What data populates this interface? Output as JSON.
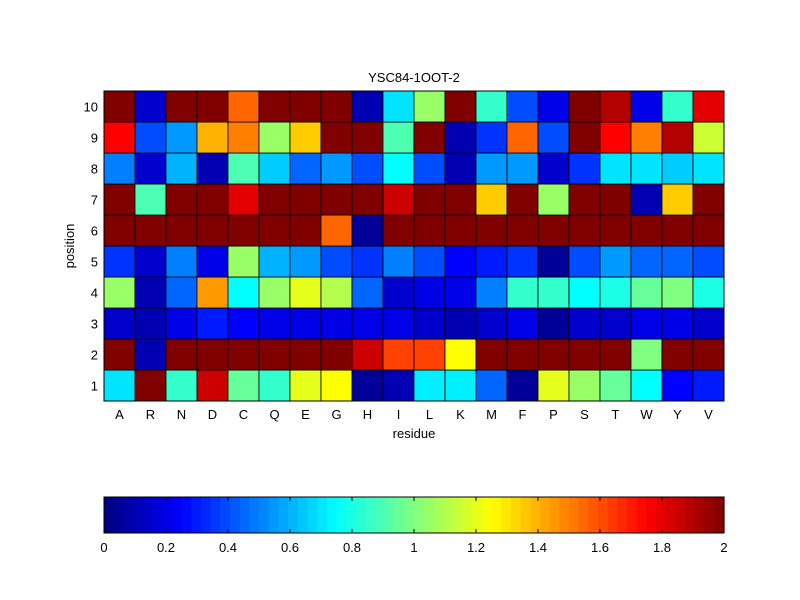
{
  "chart_data": {
    "type": "heatmap",
    "title": "YSC84-1OOT-2",
    "xlabel": "residue",
    "ylabel": "position",
    "x_categories": [
      "A",
      "R",
      "N",
      "D",
      "C",
      "Q",
      "E",
      "G",
      "H",
      "I",
      "L",
      "K",
      "M",
      "F",
      "P",
      "S",
      "T",
      "W",
      "Y",
      "V"
    ],
    "y_categories": [
      "1",
      "2",
      "3",
      "4",
      "5",
      "6",
      "7",
      "8",
      "9",
      "10"
    ],
    "colormap": "jet",
    "clim": [
      0,
      2
    ],
    "colorbar": {
      "placement": "bottom",
      "ticks": [
        0,
        0.2,
        0.4,
        0.6,
        0.8,
        1,
        1.2,
        1.4,
        1.6,
        1.8,
        2
      ],
      "tick_labels": [
        "0",
        "0.2",
        "0.4",
        "0.6",
        "0.8",
        "1",
        "1.2",
        "1.4",
        "1.6",
        "1.8",
        "2"
      ]
    },
    "grid": true,
    "values": [
      [
        0.7,
        2.0,
        0.85,
        1.85,
        0.95,
        0.85,
        1.2,
        1.25,
        0.05,
        0.1,
        0.72,
        0.72,
        0.45,
        0.05,
        1.2,
        1.05,
        0.95,
        0.75,
        0.25,
        0.3
      ],
      [
        2.0,
        0.1,
        2.0,
        2.0,
        2.0,
        2.0,
        2.0,
        2.0,
        1.85,
        1.62,
        1.62,
        1.25,
        2.0,
        2.0,
        2.0,
        2.0,
        2.0,
        1.0,
        2.0,
        2.0
      ],
      [
        0.15,
        0.1,
        0.2,
        0.3,
        0.25,
        0.2,
        0.2,
        0.2,
        0.2,
        0.2,
        0.15,
        0.1,
        0.15,
        0.2,
        0.05,
        0.15,
        0.15,
        0.2,
        0.2,
        0.15
      ],
      [
        1.05,
        0.1,
        0.45,
        1.45,
        0.75,
        1.05,
        1.2,
        1.1,
        0.45,
        0.15,
        0.2,
        0.2,
        0.5,
        0.85,
        0.85,
        0.75,
        0.8,
        0.95,
        1.0,
        0.8
      ],
      [
        0.35,
        0.15,
        0.5,
        0.2,
        1.05,
        0.6,
        0.55,
        0.4,
        0.35,
        0.5,
        0.4,
        0.25,
        0.3,
        0.35,
        0.05,
        0.4,
        0.55,
        0.45,
        0.45,
        0.4
      ],
      [
        2.0,
        2.0,
        2.0,
        2.0,
        2.0,
        2.0,
        2.0,
        1.55,
        0.05,
        2.0,
        2.0,
        2.0,
        2.0,
        2.0,
        2.0,
        2.0,
        2.0,
        2.0,
        2.0,
        2.0
      ],
      [
        2.0,
        0.9,
        2.0,
        2.0,
        1.8,
        2.0,
        2.0,
        2.0,
        2.0,
        1.85,
        2.0,
        2.0,
        1.35,
        2.0,
        1.05,
        2.0,
        2.0,
        0.1,
        1.35,
        2.0
      ],
      [
        0.5,
        0.15,
        0.6,
        0.1,
        0.9,
        0.65,
        0.45,
        0.55,
        0.4,
        0.75,
        0.4,
        0.1,
        0.55,
        0.55,
        0.15,
        0.35,
        0.7,
        0.7,
        0.65,
        0.7
      ],
      [
        1.75,
        0.4,
        0.55,
        1.4,
        1.5,
        1.05,
        1.35,
        2.0,
        2.0,
        0.9,
        2.0,
        0.1,
        0.35,
        1.55,
        0.4,
        2.0,
        1.75,
        1.5,
        1.9,
        1.15
      ],
      [
        2.0,
        0.15,
        2.0,
        2.0,
        1.55,
        2.0,
        2.0,
        2.0,
        0.1,
        0.7,
        1.05,
        2.0,
        0.85,
        0.4,
        0.2,
        2.0,
        1.9,
        0.2,
        0.85,
        1.8
      ]
    ]
  }
}
